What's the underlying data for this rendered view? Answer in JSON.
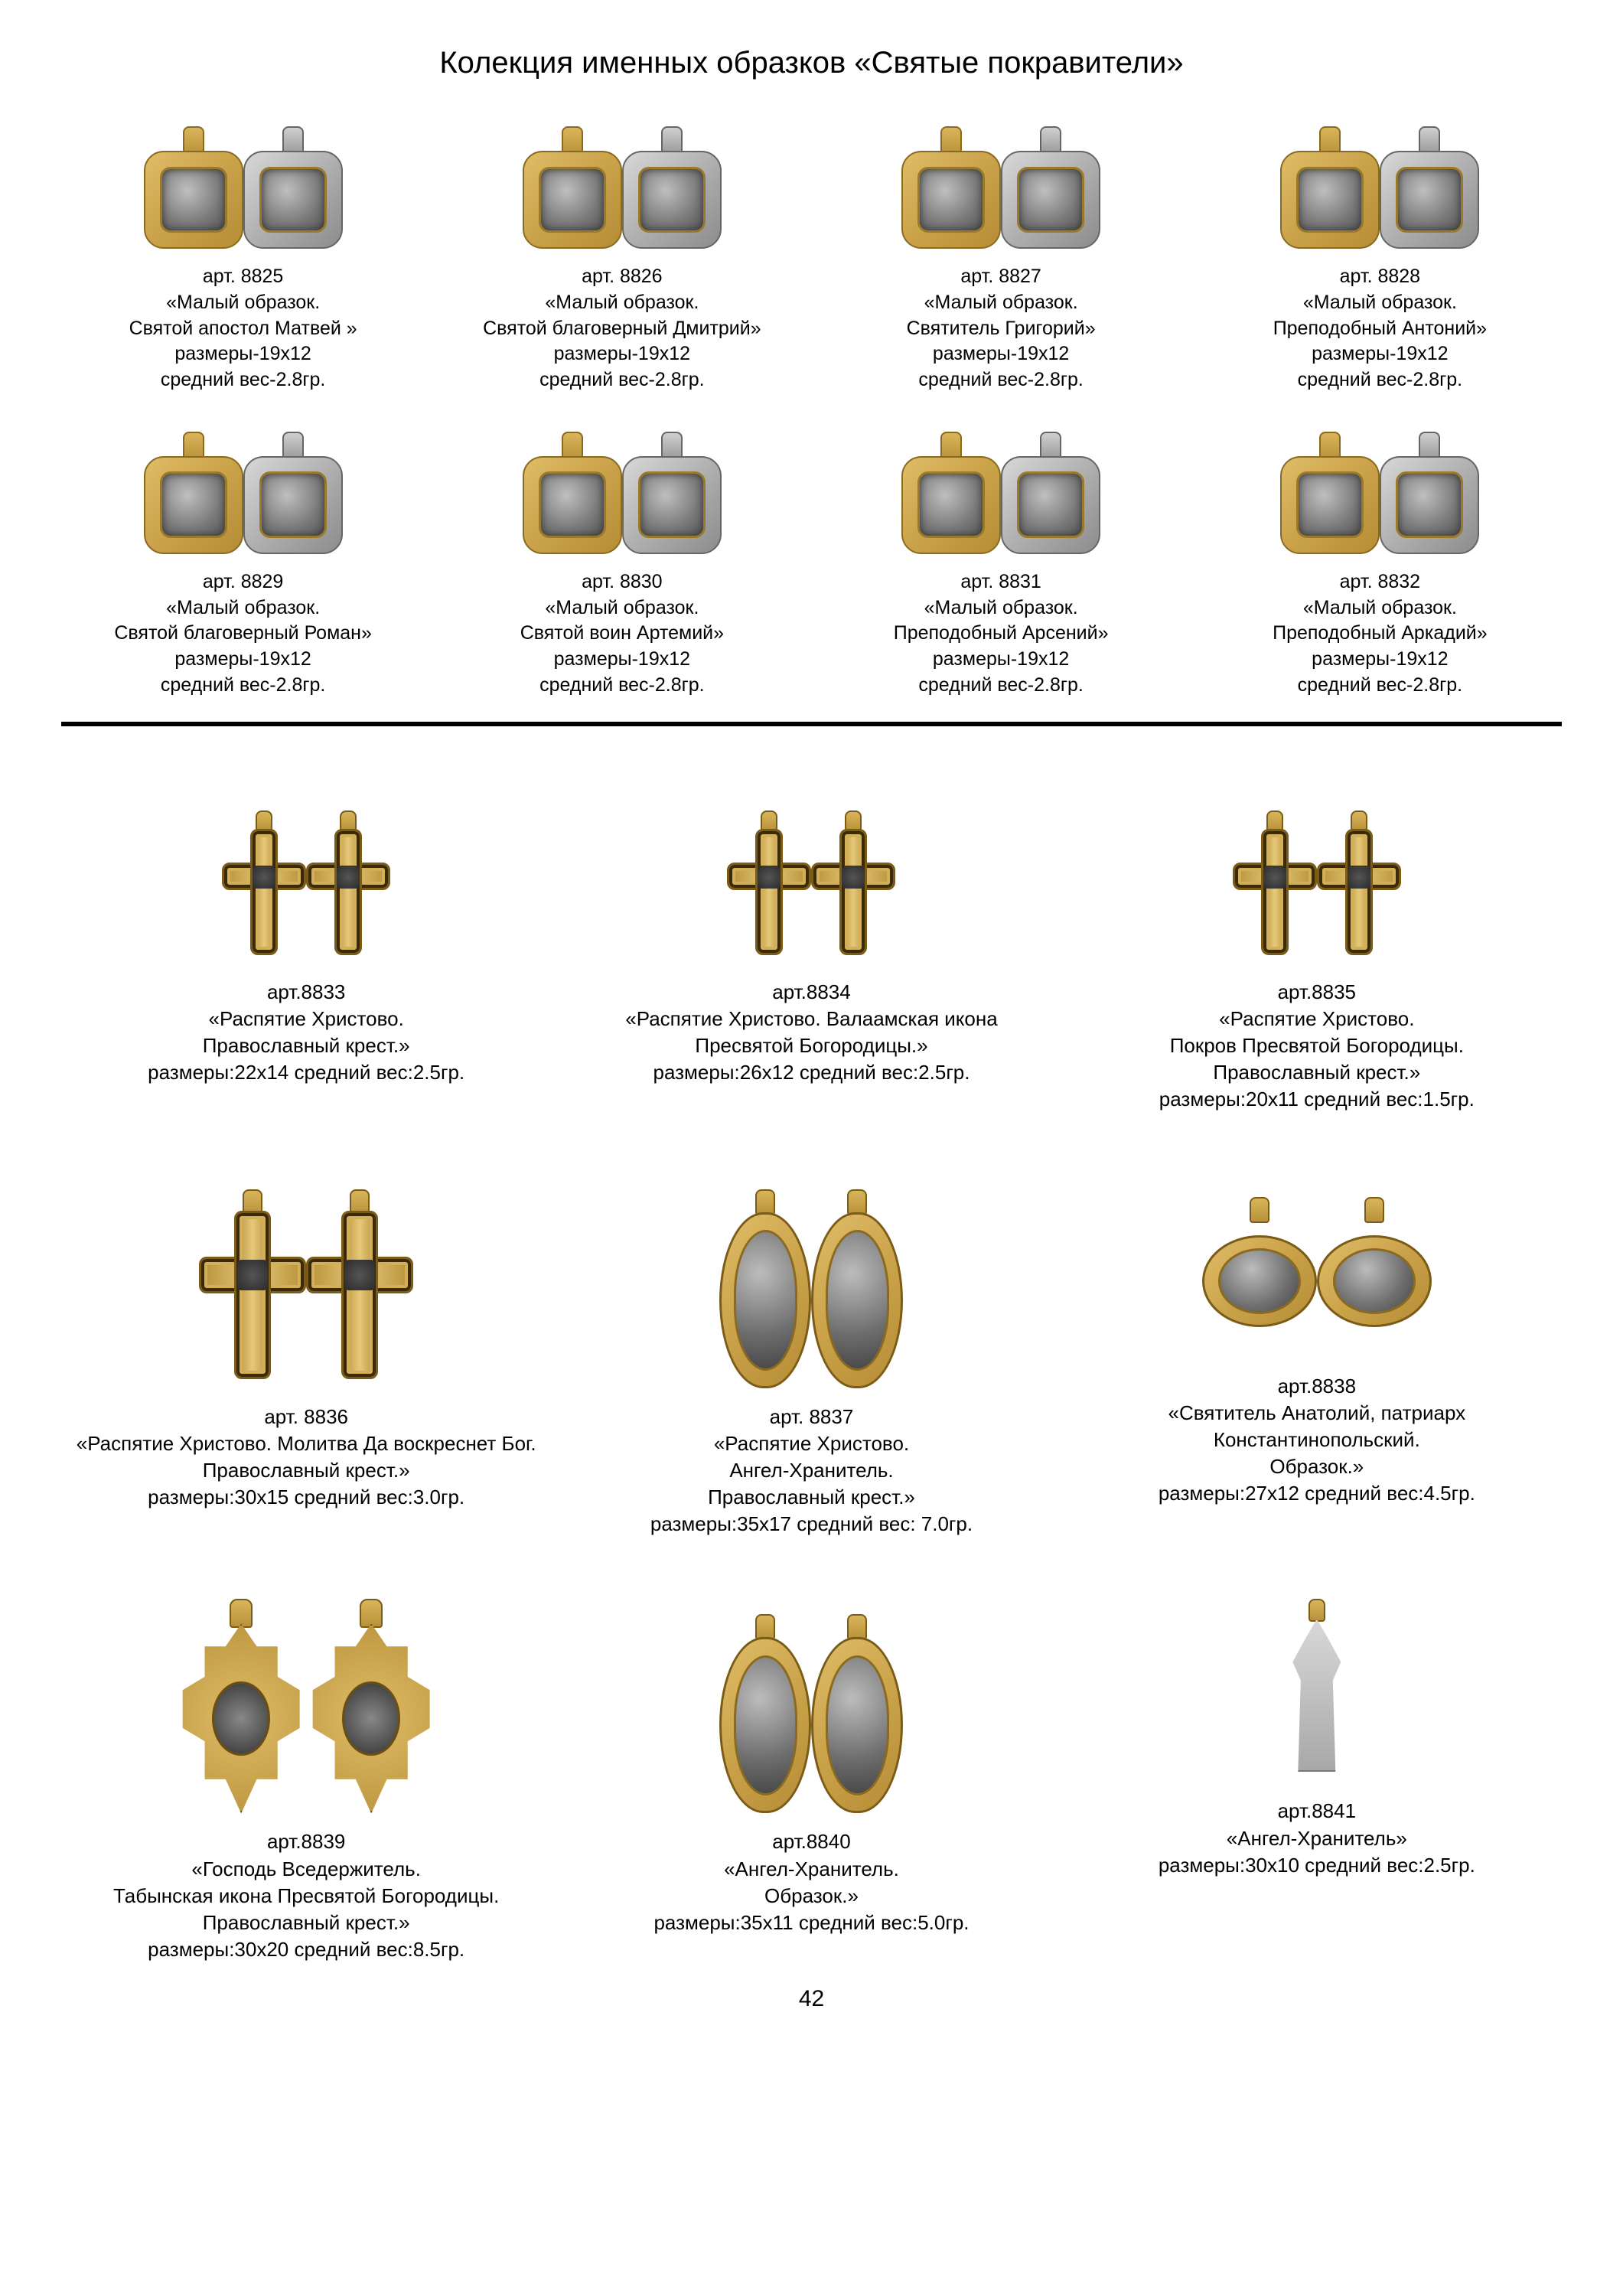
{
  "title": "Колекция именных образков «Святые покравители»",
  "page_number": "42",
  "colors": {
    "gold_light": "#e0bd68",
    "gold_mid": "#caa24a",
    "gold_dark": "#b8923a",
    "gold_border": "#7a5c18",
    "silver_light": "#d8d8d8",
    "silver_dark": "#8c8c8c",
    "text": "#000000",
    "bg": "#ffffff"
  },
  "top_items": [
    {
      "art": "арт. 8825",
      "l1": "«Малый образок.",
      "l2": "Святой апостол Матвей »",
      "size": "размеры-19х12",
      "weight": "средний вес-2.8гр."
    },
    {
      "art": "арт. 8826",
      "l1": "«Малый образок.",
      "l2": "Святой благоверный Дмитрий»",
      "size": "размеры-19х12",
      "weight": "средний вес-2.8гр."
    },
    {
      "art": "арт. 8827",
      "l1": "«Малый образок.",
      "l2": "Святитель Григорий»",
      "size": "размеры-19х12",
      "weight": "средний вес-2.8гр."
    },
    {
      "art": "арт. 8828",
      "l1": "«Малый образок.",
      "l2": "Преподобный Антоний»",
      "size": "размеры-19х12",
      "weight": "средний вес-2.8гр."
    },
    {
      "art": "арт. 8829",
      "l1": "«Малый образок.",
      "l2": "Святой благоверный Роман»",
      "size": "размеры-19х12",
      "weight": "средний вес-2.8гр."
    },
    {
      "art": "арт. 8830",
      "l1": "«Малый образок.",
      "l2": "Святой воин Артемий»",
      "size": "размеры-19х12",
      "weight": "средний вес-2.8гр."
    },
    {
      "art": "арт. 8831",
      "l1": "«Малый образок.",
      "l2": "Преподобный Арсений»",
      "size": "размеры-19х12",
      "weight": "средний вес-2.8гр."
    },
    {
      "art": "арт. 8832",
      "l1": "«Малый образок.",
      "l2": "Преподобный Аркадий»",
      "size": "размеры-19х12",
      "weight": "средний вес-2.8гр."
    }
  ],
  "bottom_items": [
    {
      "art": "арт.8833",
      "l1": "«Распятие Христово.",
      "l2": "Православный крест.»",
      "l3": "",
      "size": "размеры:22х14 средний вес:2.5гр.",
      "shape": "cross-small"
    },
    {
      "art": "арт.8834",
      "l1": "«Распятие Христово. Валаамская икона",
      "l2": "Пресвятой Богородицы.»",
      "l3": "",
      "size": "размеры:26х12  средний вес:2.5гр.",
      "shape": "cross-small"
    },
    {
      "art": "арт.8835",
      "l1": "«Распятие Христово.",
      "l2": "Покров Пресвятой Богородицы.",
      "l3": "Православный крест.»",
      "size": "размеры:20х11  средний вес:1.5гр.",
      "shape": "cross-small"
    },
    {
      "art": "арт. 8836",
      "l1": "«Распятие Христово. Молитва Да воскреснет Бог.",
      "l2": "Православный крест.»",
      "l3": "",
      "size": "размеры:30х15  средний вес:3.0гр.",
      "shape": "cross-large"
    },
    {
      "art": "арт. 8837",
      "l1": "«Распятие Христово.",
      "l2": "Ангел-Хранитель.",
      "l3": "Православный крест.»",
      "size": "размеры:35х17  средний вес: 7.0гр.",
      "shape": "ornate-oval"
    },
    {
      "art": "арт.8838",
      "l1": "«Святитель Анатолий, патриарх",
      "l2": "Константинопольский.",
      "l3": "Образок.»",
      "size": "размеры:27х12  средний вес:4.5гр.",
      "shape": "oval-round"
    },
    {
      "art": "арт.8839",
      "l1": "«Господь Вседержитель.",
      "l2": "Табынская икона Пресвятой Богородицы.",
      "l3": "Православный крест.»",
      "size": "размеры:30х20  средний вес:8.5гр.",
      "shape": "ornate-pend"
    },
    {
      "art": "арт.8840",
      "l1": "«Ангел-Хранитель.",
      "l2": "Образок.»",
      "l3": "",
      "size": "размеры:35х11  средний вес:5.0гр.",
      "shape": "oval-long"
    },
    {
      "art": "арт.8841",
      "l1": "«Ангел-Хранитель»",
      "l2": "",
      "l3": "",
      "size": "размеры:30х10  средний вес:2.5гр.",
      "shape": "angel"
    }
  ]
}
